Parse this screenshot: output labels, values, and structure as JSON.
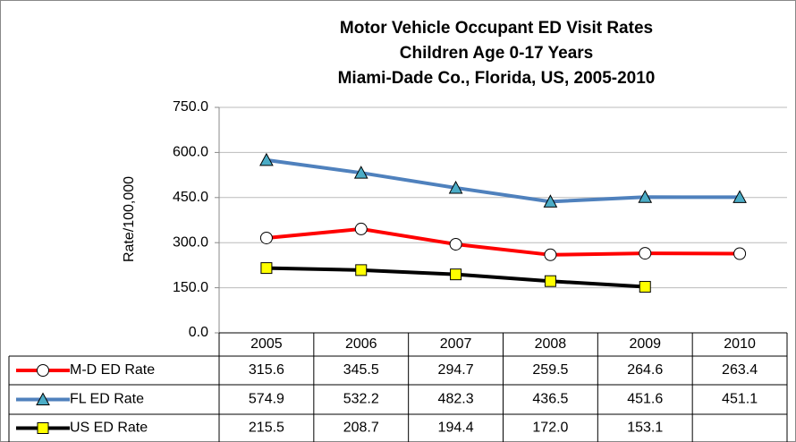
{
  "chart_data": {
    "type": "line",
    "title": [
      "Motor Vehicle Occupant ED Visit Rates",
      "Children Age 0-17 Years",
      "Miami-Dade Co., Florida, US, 2005-2010"
    ],
    "y_label": "Rate/100,000",
    "categories": [
      "2005",
      "2006",
      "2007",
      "2008",
      "2009",
      "2010"
    ],
    "series": [
      {
        "name": "M-D ED Rate",
        "color": "#ff0000",
        "marker": "circle",
        "marker_color": "#ffffff",
        "values": [
          315.6,
          345.5,
          294.7,
          259.5,
          264.6,
          263.4
        ],
        "value_labels": [
          "315.6",
          "345.5",
          "294.7",
          "259.5",
          "264.6",
          "263.4"
        ]
      },
      {
        "name": "FL ED Rate",
        "color": "#4f81bd",
        "marker": "triangle",
        "marker_color": "#4bacc6",
        "values": [
          574.9,
          532.2,
          482.3,
          436.5,
          451.6,
          451.1
        ],
        "value_labels": [
          "574.9",
          "532.2",
          "482.3",
          "436.5",
          "451.6",
          "451.1"
        ]
      },
      {
        "name": "US ED Rate",
        "color": "#000000",
        "marker": "square",
        "marker_color": "#ffff00",
        "values": [
          215.5,
          208.7,
          194.4,
          172.0,
          153.1,
          null
        ],
        "value_labels": [
          "215.5",
          "208.7",
          "194.4",
          "172.0",
          "153.1",
          null
        ]
      }
    ],
    "ylim": [
      0,
      750
    ],
    "yticks": [
      {
        "value": 0,
        "label": "0.0"
      },
      {
        "value": 150,
        "label": "150.0"
      },
      {
        "value": 300,
        "label": "300.0"
      },
      {
        "value": 450,
        "label": "450.0"
      },
      {
        "value": 600,
        "label": "600.0"
      },
      {
        "value": 750,
        "label": "750.0"
      }
    ],
    "grid": true
  }
}
